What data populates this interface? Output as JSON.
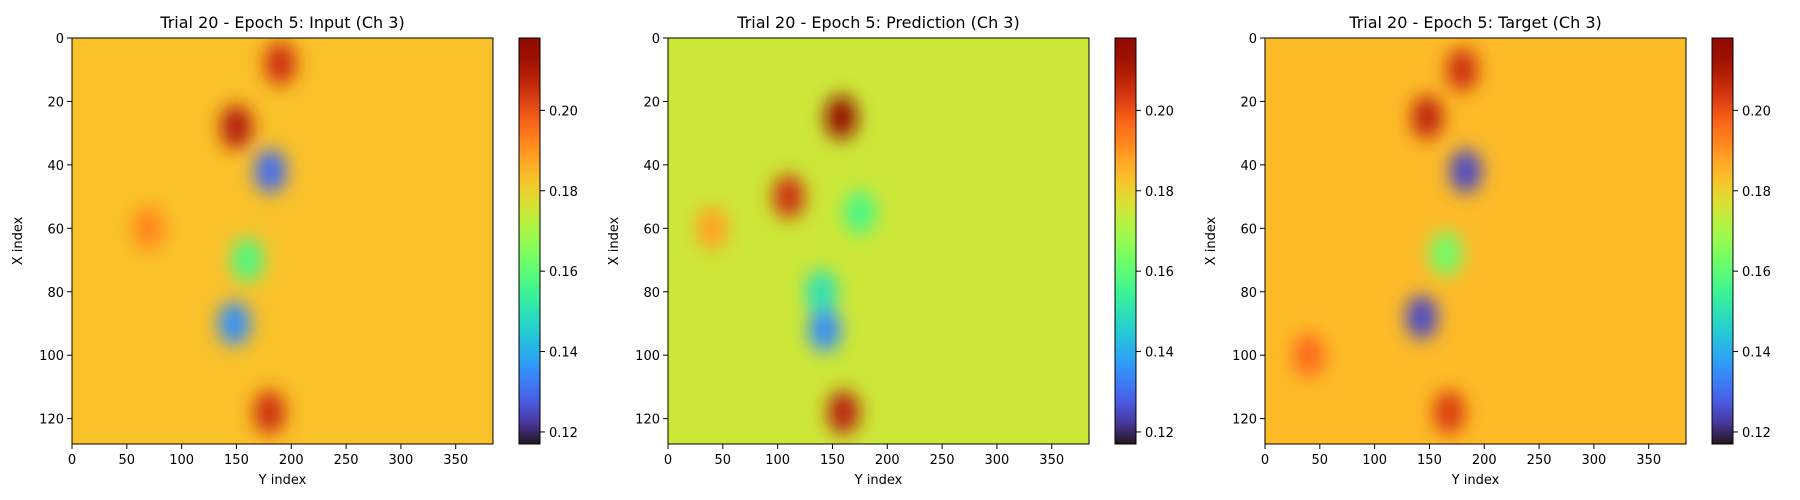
{
  "chart_data": [
    {
      "type": "heatmap",
      "title": "Trial 20 - Epoch 5: Input (Ch 3)",
      "xlabel": "Y index",
      "ylabel": "X index",
      "xlim": [
        0,
        384
      ],
      "ylim": [
        128,
        0
      ],
      "x_ticks": [
        "0",
        "50",
        "100",
        "150",
        "200",
        "250",
        "300",
        "350"
      ],
      "y_ticks": [
        "0",
        "20",
        "40",
        "60",
        "80",
        "100",
        "120"
      ],
      "colorbar": {
        "colormap": "turbo",
        "range": [
          0.117,
          0.218
        ],
        "ticks": [
          "0.12",
          "0.14",
          "0.16",
          "0.18",
          "0.20"
        ]
      },
      "background_value": 0.183,
      "features": [
        {
          "x": 190,
          "y": 8,
          "value": 0.205
        },
        {
          "x": 150,
          "y": 28,
          "value": 0.209
        },
        {
          "x": 181,
          "y": 42,
          "value": 0.13
        },
        {
          "x": 160,
          "y": 70,
          "value": 0.158
        },
        {
          "x": 148,
          "y": 90,
          "value": 0.135
        },
        {
          "x": 180,
          "y": 118,
          "value": 0.205
        },
        {
          "x": 70,
          "y": 60,
          "value": 0.192
        }
      ]
    },
    {
      "type": "heatmap",
      "title": "Trial 20 - Epoch 5: Prediction (Ch 3)",
      "xlabel": "Y index",
      "ylabel": "X index",
      "xlim": [
        0,
        384
      ],
      "ylim": [
        128,
        0
      ],
      "x_ticks": [
        "0",
        "50",
        "100",
        "150",
        "200",
        "250",
        "300",
        "350"
      ],
      "y_ticks": [
        "0",
        "20",
        "40",
        "60",
        "80",
        "100",
        "120"
      ],
      "colorbar": {
        "colormap": "turbo",
        "range": [
          0.117,
          0.218
        ],
        "ticks": [
          "0.12",
          "0.14",
          "0.16",
          "0.18",
          "0.20"
        ]
      },
      "background_value": 0.175,
      "features": [
        {
          "x": 158,
          "y": 25,
          "value": 0.215
        },
        {
          "x": 110,
          "y": 50,
          "value": 0.205
        },
        {
          "x": 175,
          "y": 55,
          "value": 0.157
        },
        {
          "x": 140,
          "y": 80,
          "value": 0.15
        },
        {
          "x": 143,
          "y": 92,
          "value": 0.135
        },
        {
          "x": 160,
          "y": 118,
          "value": 0.208
        },
        {
          "x": 40,
          "y": 60,
          "value": 0.188
        }
      ]
    },
    {
      "type": "heatmap",
      "title": "Trial 20 - Epoch 5: Target (Ch 3)",
      "xlabel": "Y index",
      "ylabel": "X index",
      "xlim": [
        0,
        384
      ],
      "ylim": [
        128,
        0
      ],
      "x_ticks": [
        "0",
        "50",
        "100",
        "150",
        "200",
        "250",
        "300",
        "350"
      ],
      "y_ticks": [
        "0",
        "20",
        "40",
        "60",
        "80",
        "100",
        "120"
      ],
      "colorbar": {
        "colormap": "turbo",
        "range": [
          0.117,
          0.218
        ],
        "ticks": [
          "0.12",
          "0.14",
          "0.16",
          "0.18",
          "0.20"
        ]
      },
      "background_value": 0.184,
      "features": [
        {
          "x": 180,
          "y": 10,
          "value": 0.205
        },
        {
          "x": 148,
          "y": 25,
          "value": 0.207
        },
        {
          "x": 183,
          "y": 42,
          "value": 0.125
        },
        {
          "x": 165,
          "y": 68,
          "value": 0.162
        },
        {
          "x": 143,
          "y": 88,
          "value": 0.125
        },
        {
          "x": 168,
          "y": 118,
          "value": 0.203
        },
        {
          "x": 40,
          "y": 100,
          "value": 0.196
        }
      ]
    }
  ]
}
